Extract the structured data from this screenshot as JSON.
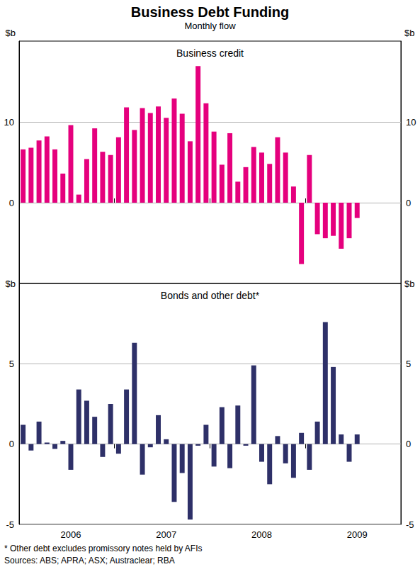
{
  "title": "Business Debt Funding",
  "subtitle": "Monthly flow",
  "footnotes": [
    "* Other debt excludes promissory notes held by AFIs",
    "Sources: ABS; APRA; ASX; Austraclear; RBA"
  ],
  "chart_data": [
    {
      "type": "bar",
      "title": "Business credit",
      "categories": [
        null,
        null,
        null,
        null,
        null,
        null,
        "2006",
        null,
        null,
        null,
        null,
        null,
        null,
        null,
        null,
        null,
        null,
        null,
        "2007",
        null,
        null,
        null,
        null,
        null,
        null,
        null,
        null,
        null,
        null,
        null,
        "2008",
        null,
        null,
        null,
        null,
        null,
        null,
        null,
        null,
        null,
        null,
        null,
        "2009",
        null,
        null,
        null,
        null,
        null
      ],
      "values": [
        6.6,
        6.8,
        7.7,
        8.2,
        6.6,
        3.6,
        9.6,
        1.0,
        5.4,
        9.2,
        6.3,
        5.9,
        8.1,
        11.8,
        9.0,
        11.7,
        11.1,
        11.9,
        10.5,
        12.9,
        11.0,
        7.6,
        16.9,
        12.3,
        8.8,
        4.7,
        8.6,
        2.6,
        4.4,
        6.9,
        6.2,
        4.8,
        8.1,
        6.2,
        2.0,
        -7.6,
        5.9,
        -3.9,
        -4.4,
        -4.1,
        -5.7,
        -4.4,
        -1.9,
        null,
        null,
        null,
        null,
        null
      ],
      "color": "#e5007d",
      "ylabel": "$b",
      "ylim": [
        -10,
        20
      ],
      "yticks": [
        0,
        10
      ],
      "grid": true,
      "tick_labels": "y"
    },
    {
      "type": "bar",
      "title": "Bonds and other debt*",
      "categories": [
        null,
        null,
        null,
        null,
        null,
        null,
        "2006",
        null,
        null,
        null,
        null,
        null,
        null,
        null,
        null,
        null,
        null,
        null,
        "2007",
        null,
        null,
        null,
        null,
        null,
        null,
        null,
        null,
        null,
        null,
        null,
        "2008",
        null,
        null,
        null,
        null,
        null,
        null,
        null,
        null,
        null,
        null,
        null,
        "2009",
        null,
        null,
        null,
        null,
        null
      ],
      "values": [
        1.2,
        -0.4,
        1.4,
        0.1,
        -0.3,
        0.2,
        -1.6,
        3.4,
        2.7,
        1.7,
        -0.8,
        2.5,
        -0.6,
        3.4,
        6.3,
        -1.9,
        -0.2,
        1.8,
        0.3,
        -3.6,
        -1.8,
        -4.7,
        -0.1,
        1.2,
        -1.4,
        2.3,
        -1.5,
        2.4,
        -0.1,
        4.9,
        -1.1,
        -2.5,
        0.5,
        -1.2,
        -2.1,
        0.7,
        -1.6,
        1.4,
        7.6,
        4.8,
        0.6,
        -1.1,
        0.6,
        null,
        null,
        null,
        null,
        null
      ],
      "color": "#2e3068",
      "ylabel": "$b",
      "ylim": [
        -5,
        10
      ],
      "yticks": [
        -5,
        0,
        5
      ],
      "grid": true
    }
  ]
}
